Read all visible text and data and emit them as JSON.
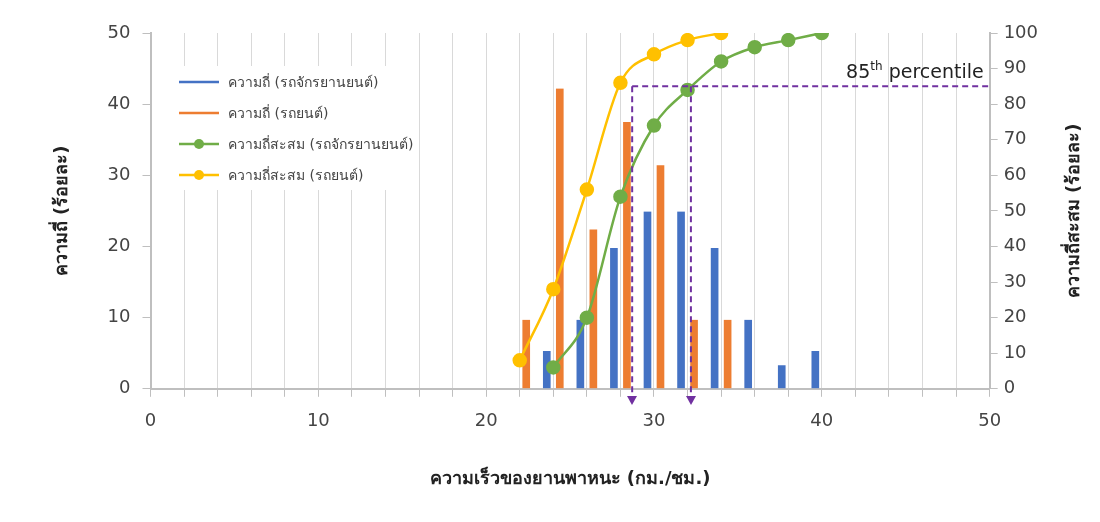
{
  "chart_data": {
    "type": "bar",
    "xlabel": "ความเร็วของยานพาหนะ (กม./ชม.)",
    "ylabel": "ความถี่ (ร้อยละ)",
    "y2label": "ความถี่สะสม (ร้อยละ)",
    "series": [
      {
        "name": "ความถี่ (รถจักรยานยนต์)",
        "color": "#4472c4",
        "x": [
          24,
          26,
          28,
          30,
          32,
          34,
          36,
          38,
          40
        ],
        "values": [
          5.3,
          9.7,
          19.8,
          24.9,
          24.9,
          19.8,
          9.7,
          3.3,
          5.3
        ]
      },
      {
        "name": "ความถี่ (รถยนต์)",
        "color": "#ed7d31",
        "x": [
          22,
          24,
          26,
          28,
          30,
          32,
          34
        ],
        "values": [
          9.7,
          42.2,
          22.4,
          37.5,
          31.4,
          9.7,
          9.7
        ]
      },
      {
        "name": "ความถี่สะสม (รถจักรยานยนต์)",
        "type": "line",
        "axis": "y2",
        "marker": "circle",
        "color": "#70ad47",
        "x": [
          24,
          26,
          28,
          30,
          32,
          34,
          36,
          38,
          40
        ],
        "values": [
          6,
          20,
          54,
          74,
          84,
          92,
          96,
          98,
          100
        ]
      },
      {
        "name": "ความถี่สะสม (รถยนต์)",
        "type": "line",
        "axis": "y2",
        "marker": "circle",
        "color": "#ffc000",
        "x": [
          22,
          24,
          26,
          28,
          30,
          32,
          34
        ],
        "values": [
          8,
          28,
          56,
          86,
          94,
          98,
          100
        ]
      }
    ],
    "xlim": [
      0,
      50
    ],
    "xticks": [
      0,
      {
        "value": 2,
        "label": null
      },
      {
        "value": 4,
        "label": null
      },
      {
        "value": 6,
        "label": null
      },
      {
        "value": 8,
        "label": null
      },
      10,
      {
        "value": 12,
        "label": null
      },
      {
        "value": 14,
        "label": null
      },
      {
        "value": 16,
        "label": null
      },
      {
        "value": 18,
        "label": null
      },
      20,
      {
        "value": 22,
        "label": null
      },
      {
        "value": 24,
        "label": null
      },
      {
        "value": 26,
        "label": null
      },
      {
        "value": 28,
        "label": null
      },
      30,
      {
        "value": 32,
        "label": null
      },
      {
        "value": 34,
        "label": null
      },
      {
        "value": 36,
        "label": null
      },
      {
        "value": 38,
        "label": null
      },
      40,
      {
        "value": 42,
        "label": null
      },
      {
        "value": 44,
        "label": null
      },
      {
        "value": 46,
        "label": null
      },
      {
        "value": 48,
        "label": null
      },
      50
    ],
    "ylim": [
      0,
      50
    ],
    "yticks": [
      0,
      10,
      20,
      30,
      40,
      50
    ],
    "y2lim": [
      0,
      100
    ],
    "y2ticks": [
      0,
      10,
      20,
      30,
      40,
      50,
      60,
      70,
      80,
      90,
      100
    ],
    "ref_lines": [
      {
        "axis": "y2",
        "value": 85,
        "label": "85$^{th}$ percentile",
        "color": "#7030a0",
        "line_style": "dashed"
      },
      {
        "axis": "x",
        "value": 28.7,
        "color": "#7030a0",
        "line_style": "dashed"
      },
      {
        "axis": "x",
        "value": 32.2,
        "color": "#7030a0",
        "line_style": "dashed"
      }
    ],
    "grid": "x",
    "legend": "top left"
  }
}
